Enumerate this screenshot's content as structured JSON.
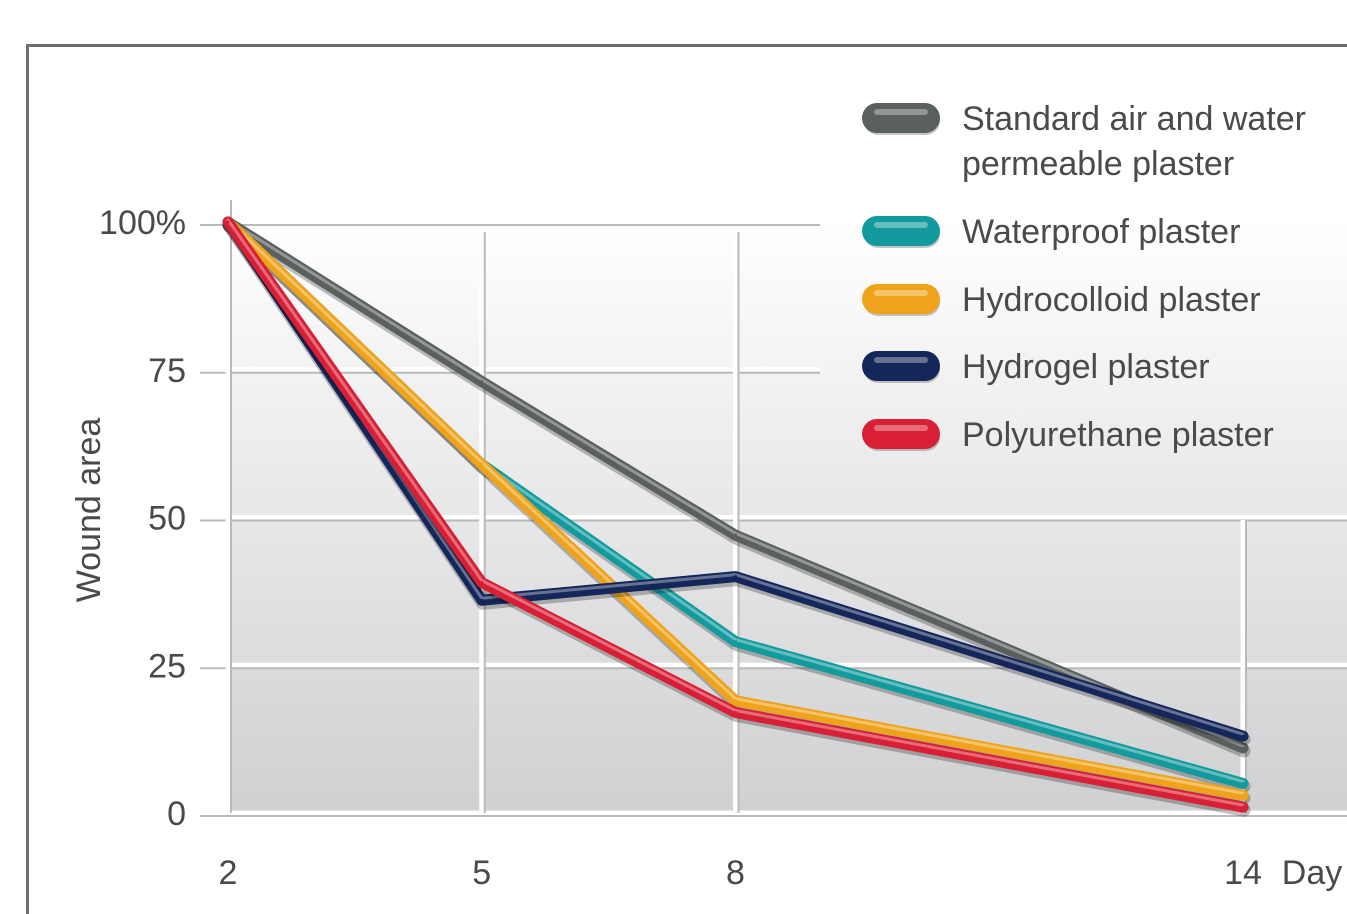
{
  "chart_data": {
    "type": "line",
    "title": "",
    "xlabel": "Day",
    "ylabel": "Wound area",
    "x": [
      2,
      5,
      8,
      14
    ],
    "x_tick_labels": [
      "2",
      "5",
      "8",
      "14"
    ],
    "y_tick_labels": [
      "0",
      "25",
      "50",
      "75",
      "100%"
    ],
    "y_ticks": [
      0,
      25,
      50,
      75,
      100
    ],
    "ylim": [
      0,
      100
    ],
    "grid": true,
    "legend_position": "top-right",
    "series": [
      {
        "name": "Standard air and water permeable plaster",
        "name_lines": [
          "Standard air and water",
          "permeable plaster"
        ],
        "color": "#5a5f60",
        "values": [
          100,
          73,
          47,
          11
        ]
      },
      {
        "name": "Waterproof plaster",
        "name_lines": [
          "Waterproof plaster"
        ],
        "color": "#129a9d",
        "values": [
          100,
          59,
          29,
          5
        ]
      },
      {
        "name": "Hydrocolloid plaster",
        "name_lines": [
          "Hydrocolloid plaster"
        ],
        "color": "#eea31b",
        "values": [
          100,
          59,
          19,
          3
        ]
      },
      {
        "name": "Hydrogel plaster",
        "name_lines": [
          "Hydrogel plaster"
        ],
        "color": "#14265a",
        "values": [
          100,
          36,
          40,
          13
        ]
      },
      {
        "name": "Polyurethane plaster",
        "name_lines": [
          "Polyurethane plaster"
        ],
        "color": "#d81f35",
        "values": [
          100,
          39,
          17,
          1
        ]
      }
    ]
  }
}
